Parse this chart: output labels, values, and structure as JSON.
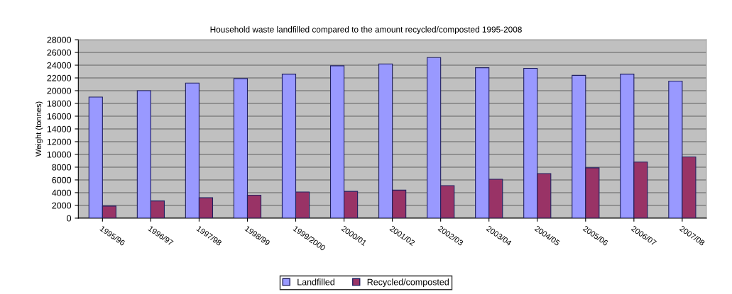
{
  "chart_data": {
    "type": "bar",
    "title": "Household waste landfilled compared to the amount recycled/composted 1995-2008",
    "ylabel": "Weight (tonnes)",
    "categories": [
      "1995/96",
      "1996/97",
      "1997/98",
      "1998/99",
      "1999/2000",
      "2000/01",
      "2001/02",
      "2002/03",
      "2003/04",
      "2004/05",
      "2005/06",
      "2006/07",
      "2007/08"
    ],
    "series": [
      {
        "name": "Landfilled",
        "color": "#9999ff",
        "values": [
          19000,
          20000,
          21200,
          21900,
          22600,
          23900,
          24200,
          25200,
          23600,
          23500,
          22400,
          22600,
          21500
        ]
      },
      {
        "name": "Recycled/composted",
        "color": "#993366",
        "values": [
          1900,
          2700,
          3200,
          3600,
          4100,
          4200,
          4400,
          5100,
          6100,
          7000,
          7900,
          8800,
          9600
        ]
      }
    ],
    "ylim": [
      0,
      28000
    ],
    "yticks": [
      0,
      2000,
      4000,
      6000,
      8000,
      10000,
      12000,
      14000,
      16000,
      18000,
      20000,
      22000,
      24000,
      26000,
      28000
    ],
    "grid": "y",
    "legend": "bottom"
  }
}
